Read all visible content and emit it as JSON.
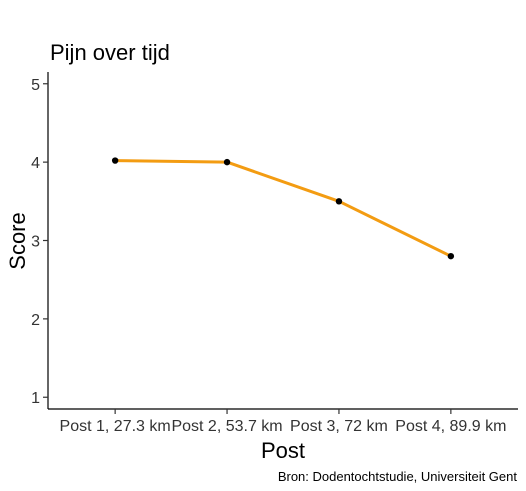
{
  "chart_data": {
    "type": "line",
    "title": "Pijn over tijd",
    "xlabel": "Post",
    "ylabel": "Score",
    "caption": "Bron: Dodentochtstudie, Universiteit Gent",
    "categories": [
      "Post 1, 27.3 km",
      "Post 2, 53.7 km",
      "Post 3, 72 km",
      "Post 4, 89.9 km"
    ],
    "values": [
      4.02,
      4.0,
      3.5,
      2.8
    ],
    "ylim": [
      0.85,
      5.15
    ],
    "yticks": [
      1,
      2,
      3,
      4,
      5
    ],
    "grid": false,
    "line_color": "#f39c12",
    "point_color": "#000000"
  }
}
